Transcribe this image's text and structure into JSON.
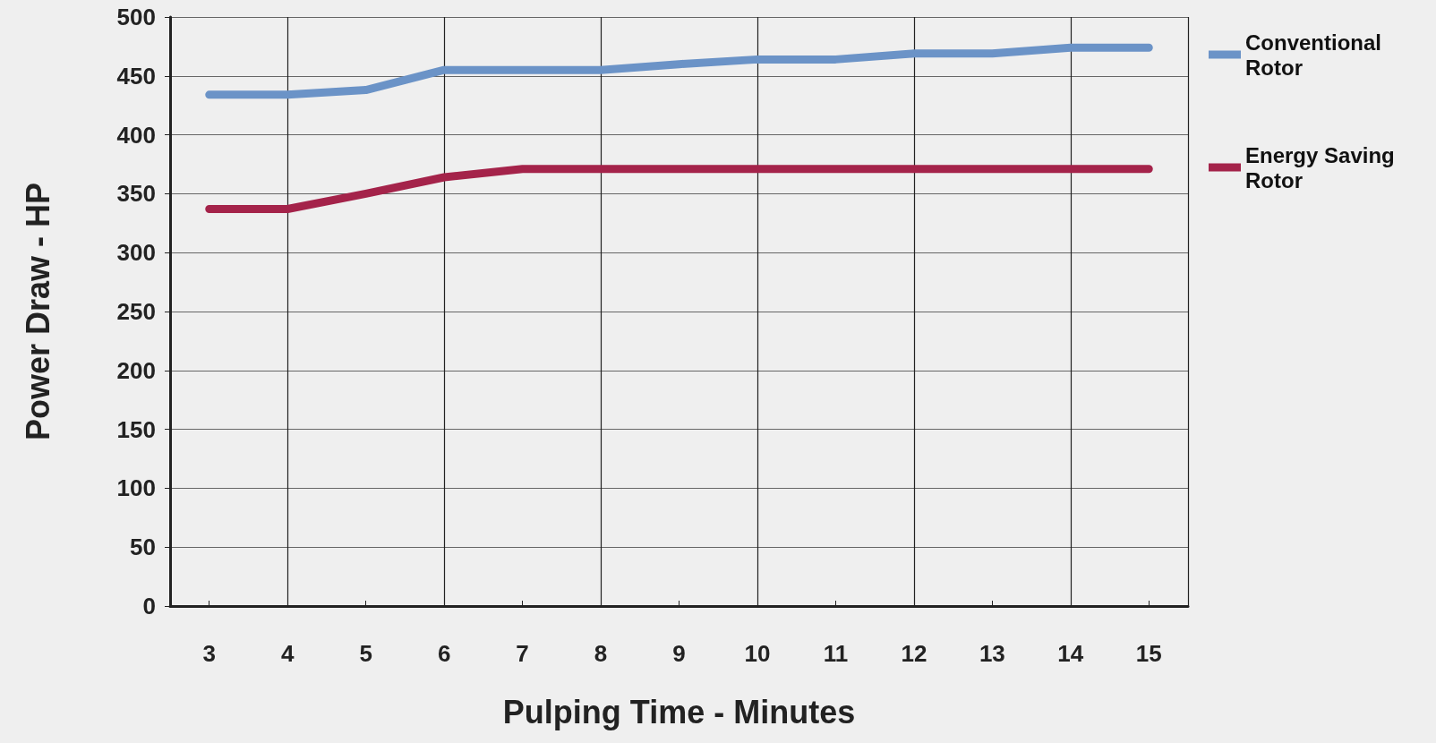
{
  "chart_data": {
    "type": "line",
    "xlabel": "Pulping Time - Minutes",
    "ylabel": "Power Draw - HP",
    "x": [
      3,
      4,
      5,
      6,
      7,
      8,
      9,
      10,
      11,
      12,
      13,
      14,
      15
    ],
    "series": [
      {
        "name": "Conventional Rotor",
        "color": "#6b93c7",
        "values": [
          434,
          434,
          438,
          455,
          455,
          455,
          460,
          464,
          464,
          469,
          469,
          474,
          474
        ]
      },
      {
        "name": "Energy Saving Rotor",
        "color": "#a4234a",
        "values": [
          337,
          337,
          350,
          364,
          371,
          371,
          371,
          371,
          371,
          371,
          371,
          371,
          371
        ]
      }
    ],
    "xlim": [
      2.5,
      15.5
    ],
    "xticks": [
      3,
      4,
      5,
      6,
      7,
      8,
      9,
      10,
      11,
      12,
      13,
      14,
      15
    ],
    "ylim": [
      0,
      500
    ],
    "yticks": [
      0,
      50,
      100,
      150,
      200,
      250,
      300,
      350,
      400,
      450,
      500
    ],
    "grid": true,
    "legend": "top right",
    "marker": "none",
    "line_style": "solid"
  }
}
